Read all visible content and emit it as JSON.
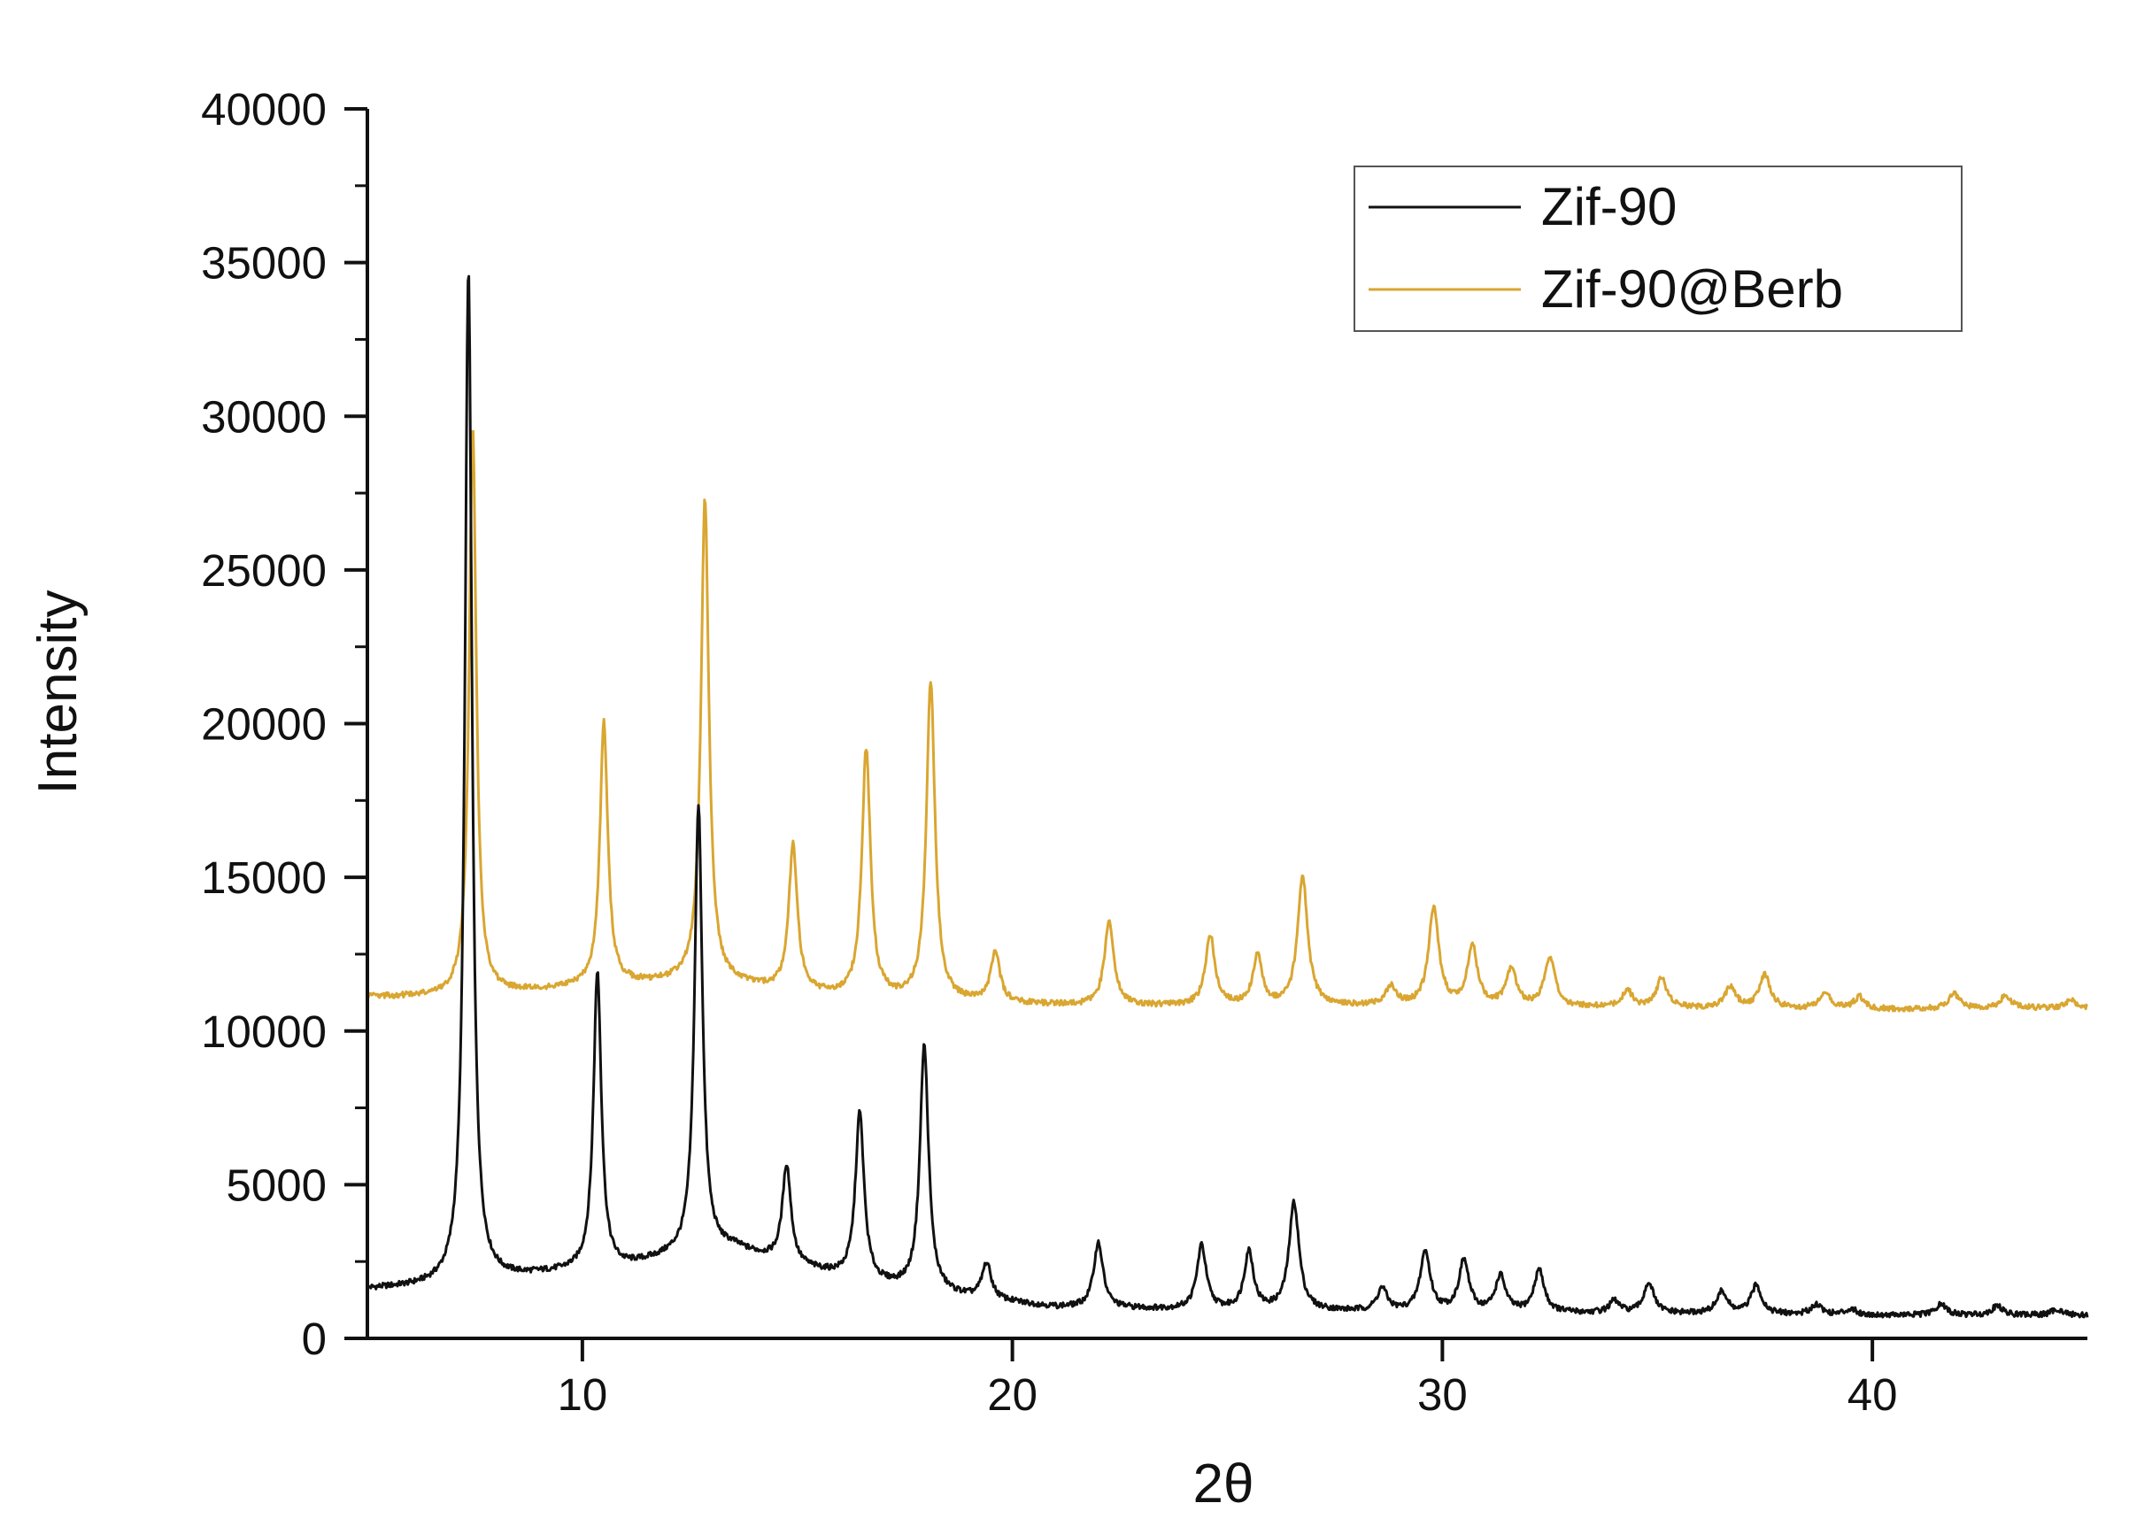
{
  "chart_data": {
    "type": "line",
    "title": "",
    "xlabel": "2θ",
    "ylabel": "Intensity",
    "xlim": [
      5,
      45
    ],
    "ylim": [
      0,
      40000
    ],
    "x_ticks": [
      10,
      20,
      30,
      40
    ],
    "x_tick_labels": [
      "10",
      "20",
      "30",
      "40"
    ],
    "y_ticks": [
      0,
      5000,
      10000,
      15000,
      20000,
      25000,
      30000,
      35000,
      40000
    ],
    "y_tick_labels": [
      "0",
      "5000",
      "10000",
      "15000",
      "20000",
      "25000",
      "30000",
      "35000",
      "40000"
    ],
    "grid": false,
    "legend_position": "top-right",
    "series": [
      {
        "name": "Zif-90",
        "color": "#111111",
        "baseline": [
          [
            5,
            1600
          ],
          [
            7,
            1700
          ],
          [
            9,
            2050
          ],
          [
            11,
            2300
          ],
          [
            12,
            2600
          ],
          [
            13.5,
            2900
          ],
          [
            15,
            2300
          ],
          [
            17,
            1700
          ],
          [
            19,
            1300
          ],
          [
            21,
            1000
          ],
          [
            25,
            900
          ],
          [
            30,
            850
          ],
          [
            35,
            800
          ],
          [
            40,
            750
          ],
          [
            45,
            750
          ]
        ],
        "peaks": [
          {
            "x": 7.35,
            "y": 34800,
            "w": 0.1
          },
          {
            "x": 10.35,
            "y": 11900,
            "w": 0.11
          },
          {
            "x": 12.7,
            "y": 17300,
            "w": 0.11
          },
          {
            "x": 14.75,
            "y": 5600,
            "w": 0.12
          },
          {
            "x": 16.45,
            "y": 7300,
            "w": 0.12
          },
          {
            "x": 17.95,
            "y": 9500,
            "w": 0.12
          },
          {
            "x": 19.4,
            "y": 2400,
            "w": 0.13
          },
          {
            "x": 22.0,
            "y": 3100,
            "w": 0.13
          },
          {
            "x": 24.4,
            "y": 3000,
            "w": 0.13
          },
          {
            "x": 25.5,
            "y": 2800,
            "w": 0.13
          },
          {
            "x": 26.55,
            "y": 4400,
            "w": 0.14
          },
          {
            "x": 28.6,
            "y": 1600,
            "w": 0.14
          },
          {
            "x": 29.6,
            "y": 2800,
            "w": 0.14
          },
          {
            "x": 30.5,
            "y": 2500,
            "w": 0.14
          },
          {
            "x": 31.35,
            "y": 2000,
            "w": 0.14
          },
          {
            "x": 32.25,
            "y": 2200,
            "w": 0.14
          },
          {
            "x": 34.0,
            "y": 1200,
            "w": 0.14
          },
          {
            "x": 34.8,
            "y": 1800,
            "w": 0.14
          },
          {
            "x": 36.5,
            "y": 1500,
            "w": 0.15
          },
          {
            "x": 37.3,
            "y": 1700,
            "w": 0.15
          },
          {
            "x": 38.7,
            "y": 1100,
            "w": 0.15
          },
          {
            "x": 39.5,
            "y": 950,
            "w": 0.15
          },
          {
            "x": 41.6,
            "y": 1100,
            "w": 0.15
          },
          {
            "x": 42.9,
            "y": 1050,
            "w": 0.15
          },
          {
            "x": 44.3,
            "y": 950,
            "w": 0.15
          }
        ]
      },
      {
        "name": "Zif-90@Berb",
        "color": "#D9A631",
        "baseline": [
          [
            5,
            11100
          ],
          [
            7,
            11100
          ],
          [
            9,
            11300
          ],
          [
            11,
            11500
          ],
          [
            13,
            11600
          ],
          [
            15,
            11200
          ],
          [
            17,
            11000
          ],
          [
            19,
            10900
          ],
          [
            22,
            10800
          ],
          [
            30,
            10800
          ],
          [
            35,
            10750
          ],
          [
            40,
            10700
          ],
          [
            45,
            10750
          ]
        ],
        "peaks": [
          {
            "x": 7.45,
            "y": 29600,
            "w": 0.1
          },
          {
            "x": 10.5,
            "y": 20000,
            "w": 0.11
          },
          {
            "x": 12.85,
            "y": 27300,
            "w": 0.11
          },
          {
            "x": 14.9,
            "y": 16000,
            "w": 0.12
          },
          {
            "x": 16.6,
            "y": 19100,
            "w": 0.12
          },
          {
            "x": 18.1,
            "y": 21300,
            "w": 0.12
          },
          {
            "x": 19.6,
            "y": 12500,
            "w": 0.13
          },
          {
            "x": 22.25,
            "y": 13600,
            "w": 0.13
          },
          {
            "x": 24.6,
            "y": 13100,
            "w": 0.13
          },
          {
            "x": 25.7,
            "y": 12400,
            "w": 0.13
          },
          {
            "x": 26.75,
            "y": 15000,
            "w": 0.14
          },
          {
            "x": 28.8,
            "y": 11400,
            "w": 0.14
          },
          {
            "x": 29.8,
            "y": 14000,
            "w": 0.14
          },
          {
            "x": 30.7,
            "y": 12700,
            "w": 0.14
          },
          {
            "x": 31.6,
            "y": 12000,
            "w": 0.14
          },
          {
            "x": 32.5,
            "y": 12400,
            "w": 0.14
          },
          {
            "x": 34.3,
            "y": 11300,
            "w": 0.14
          },
          {
            "x": 35.1,
            "y": 11700,
            "w": 0.14
          },
          {
            "x": 36.7,
            "y": 11400,
            "w": 0.15
          },
          {
            "x": 37.5,
            "y": 11800,
            "w": 0.15
          },
          {
            "x": 38.9,
            "y": 11200,
            "w": 0.15
          },
          {
            "x": 39.7,
            "y": 11100,
            "w": 0.15
          },
          {
            "x": 41.9,
            "y": 11200,
            "w": 0.15
          },
          {
            "x": 43.1,
            "y": 11150,
            "w": 0.15
          },
          {
            "x": 44.6,
            "y": 11000,
            "w": 0.15
          }
        ]
      }
    ]
  }
}
